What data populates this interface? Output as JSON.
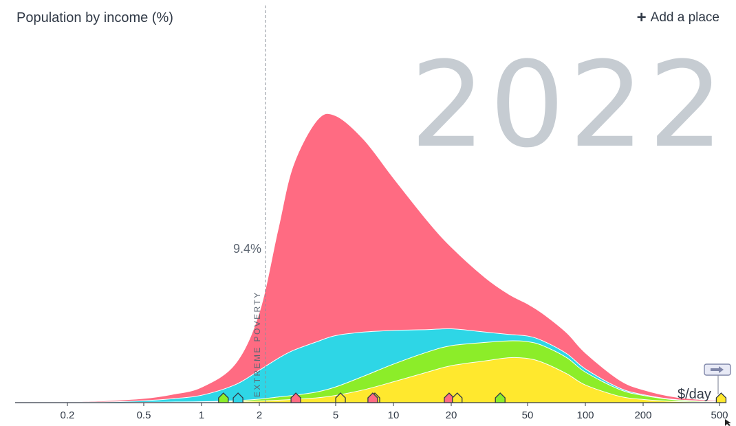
{
  "header": {
    "title": "Population by income (%)",
    "add_place_label": "Add a place"
  },
  "year": "2022",
  "poverty_line": {
    "label": "EXTREME POVERTY",
    "value": 2.15,
    "percent_label": "9.4%"
  },
  "unit_label": "$/day",
  "colors": {
    "africa": "#ff6b82",
    "asia": "#2ed6e6",
    "americas": "#8ced29",
    "europe": "#ffe82e",
    "year": "#c6ccd2",
    "text": "#303946"
  },
  "chart_data": {
    "type": "area",
    "xscale": "log",
    "xlim": [
      0.1,
      600
    ],
    "xticks": [
      0.2,
      0.5,
      1,
      2,
      5,
      10,
      20,
      50,
      100,
      200,
      500
    ],
    "xtick_labels": [
      "0.2",
      "0.5",
      "1",
      "2",
      "5",
      "10",
      "20",
      "50",
      "100",
      "200",
      "500"
    ],
    "stacking": "stacked",
    "x": [
      0.1,
      0.2,
      0.3,
      0.5,
      0.7,
      1,
      1.5,
      2,
      2.5,
      3,
      4,
      5,
      7,
      10,
      15,
      20,
      30,
      40,
      50,
      60,
      80,
      100,
      150,
      200,
      300,
      500,
      600
    ],
    "series": [
      {
        "color": "#ffe82e",
        "values": [
          0,
          0,
          0,
          0.1,
          0.2,
          0.3,
          0.6,
          1,
          1.5,
          2,
          3,
          4.5,
          8,
          13,
          19,
          23,
          26,
          28,
          27.5,
          25,
          18,
          11,
          4,
          2,
          0.7,
          0.2,
          0
        ]
      },
      {
        "color": "#8ced29",
        "values": [
          0,
          0,
          0,
          0.1,
          0.2,
          0.3,
          0.6,
          1.2,
          2,
          2.5,
          3.7,
          5.3,
          8.5,
          11,
          12.5,
          12.5,
          11.5,
          10.5,
          10.5,
          10.5,
          10,
          8,
          4.3,
          2.5,
          0.9,
          0.3,
          0
        ]
      },
      {
        "color": "#2ed6e6",
        "values": [
          0,
          0.2,
          0.4,
          1,
          2,
          4,
          10,
          18,
          24,
          28,
          31.3,
          32,
          27.5,
          21,
          14,
          10.5,
          6.5,
          4,
          3.5,
          3,
          2.5,
          2,
          0.9,
          0.5,
          0.2,
          0.1,
          0
        ]
      },
      {
        "color": "#ff6b82",
        "values": [
          0,
          0.3,
          0.6,
          1.4,
          2.7,
          5,
          13,
          36,
          80,
          115,
          138,
          137,
          120,
          95,
          68,
          51,
          34,
          25,
          20,
          17,
          13,
          10,
          5,
          3,
          1.5,
          0.5,
          0
        ]
      }
    ],
    "ylim": [
      0,
      240
    ]
  },
  "markers": [
    {
      "x": 1.3,
      "color": "#8ced29"
    },
    {
      "x": 1.55,
      "color": "#2ed6e6"
    },
    {
      "x": 3.1,
      "color": "#ff6b82"
    },
    {
      "x": 5.3,
      "color": "#ffe82e"
    },
    {
      "x": 8.0,
      "color": "#ffe82e"
    },
    {
      "x": 7.8,
      "color": "#ff6b82"
    },
    {
      "x": 19.5,
      "color": "#ff6b82"
    },
    {
      "x": 21.5,
      "color": "#ffe82e"
    },
    {
      "x": 36,
      "color": "#8ced29"
    },
    {
      "x": 510,
      "color": "#ffe82e"
    }
  ]
}
